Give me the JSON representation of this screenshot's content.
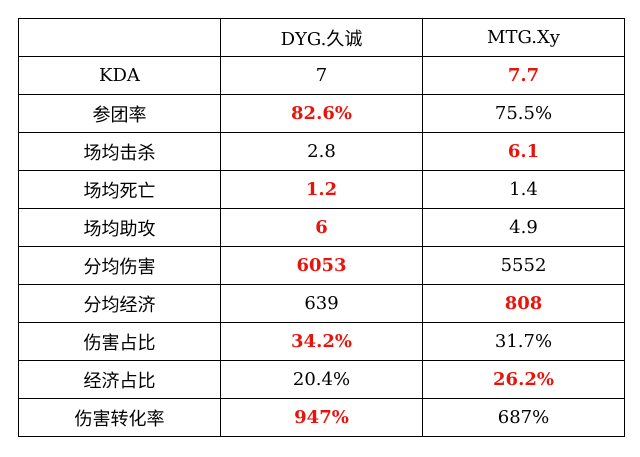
{
  "table": {
    "columns": [
      "DYG.久诚",
      "MTG.Xy"
    ],
    "rows": [
      {
        "label": "KDA",
        "values": [
          {
            "text": "7",
            "color": "#000000"
          },
          {
            "text": "7.7",
            "color": "#e8140c"
          }
        ]
      },
      {
        "label": "参团率",
        "values": [
          {
            "text": "82.6%",
            "color": "#e8140c"
          },
          {
            "text": "75.5%",
            "color": "#000000"
          }
        ]
      },
      {
        "label": "场均击杀",
        "values": [
          {
            "text": "2.8",
            "color": "#000000"
          },
          {
            "text": "6.1",
            "color": "#e8140c"
          }
        ]
      },
      {
        "label": "场均死亡",
        "values": [
          {
            "text": "1.2",
            "color": "#e8140c"
          },
          {
            "text": "1.4",
            "color": "#000000"
          }
        ]
      },
      {
        "label": "场均助攻",
        "values": [
          {
            "text": "6",
            "color": "#e8140c"
          },
          {
            "text": "4.9",
            "color": "#000000"
          }
        ]
      },
      {
        "label": "分均伤害",
        "values": [
          {
            "text": "6053",
            "color": "#e8140c"
          },
          {
            "text": "5552",
            "color": "#000000"
          }
        ]
      },
      {
        "label": "分均经济",
        "values": [
          {
            "text": "639",
            "color": "#000000"
          },
          {
            "text": "808",
            "color": "#e8140c"
          }
        ]
      },
      {
        "label": "伤害占比",
        "values": [
          {
            "text": "34.2%",
            "color": "#e8140c"
          },
          {
            "text": "31.7%",
            "color": "#000000"
          }
        ]
      },
      {
        "label": "经济占比",
        "values": [
          {
            "text": "20.4%",
            "color": "#000000"
          },
          {
            "text": "26.2%",
            "color": "#e8140c"
          }
        ]
      },
      {
        "label": "伤害转化率",
        "values": [
          {
            "text": "947%",
            "color": "#e8140c"
          },
          {
            "text": "687%",
            "color": "#000000"
          }
        ]
      }
    ]
  }
}
